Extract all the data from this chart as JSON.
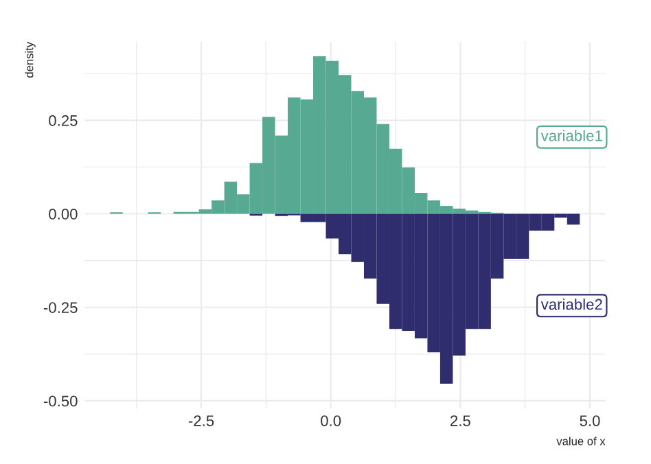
{
  "chart_data": {
    "type": "histogram",
    "xlabel": "value of x",
    "ylabel": "density",
    "bins": [
      -4.26,
      -4.015,
      -3.77,
      -3.525,
      -3.28,
      -3.035,
      -2.79,
      -2.545,
      -2.3,
      -2.055,
      -1.81,
      -1.565,
      -1.32,
      -1.075,
      -0.83,
      -0.585,
      -0.34,
      -0.095,
      0.15,
      0.395,
      0.64,
      0.885,
      1.13,
      1.375,
      1.62,
      1.865,
      2.11,
      2.355,
      2.6,
      2.845,
      3.09,
      3.335,
      3.58,
      3.825,
      4.07,
      4.315,
      4.56,
      4.805
    ],
    "series": [
      {
        "name": "variable1",
        "color": "#58a991",
        "values": [
          0.004,
          0,
          0,
          0.004,
          0,
          0.005,
          0.005,
          0.012,
          0.036,
          0.086,
          0.052,
          0.136,
          0.259,
          0.209,
          0.311,
          0.306,
          0.421,
          0.409,
          0.371,
          0.328,
          0.311,
          0.24,
          0.174,
          0.124,
          0.056,
          0.036,
          0.021,
          0.014,
          0.009,
          0.005,
          0.003,
          0,
          0,
          0,
          0,
          0,
          0
        ]
      },
      {
        "name": "variable2",
        "color": "#2f2d6e",
        "values": [
          0,
          0,
          0,
          0,
          0,
          0,
          0,
          0,
          0,
          0,
          0,
          -0.005,
          0,
          -0.006,
          -0.004,
          -0.022,
          -0.022,
          -0.066,
          -0.108,
          -0.129,
          -0.173,
          -0.241,
          -0.308,
          -0.313,
          -0.333,
          -0.37,
          -0.454,
          -0.379,
          -0.308,
          -0.308,
          -0.173,
          -0.12,
          -0.12,
          -0.045,
          -0.045,
          -0.01,
          -0.029
        ]
      }
    ],
    "xlim": [
      -4.75,
      5.3
    ],
    "ylim": [
      -0.52,
      0.46
    ],
    "xticks": [
      -2.5,
      {
        "value": 0,
        "label": "0.0"
      },
      2.5,
      {
        "value": 5,
        "label": "5.0"
      }
    ],
    "yticks": [
      {
        "value": -0.5,
        "label": "-0.50"
      },
      -0.25,
      {
        "value": 0,
        "label": "0.00"
      },
      0.25
    ],
    "grid": true,
    "legend": false
  }
}
